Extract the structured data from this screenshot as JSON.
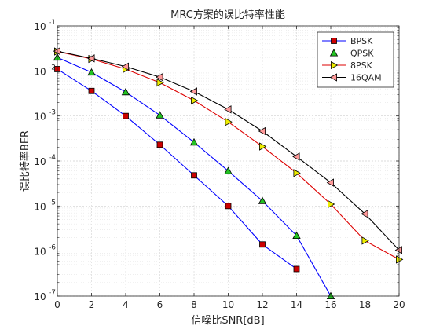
{
  "chart_data": {
    "type": "line",
    "title": "MRC方案的误比特率性能",
    "xlabel": "信噪比SNR[dB]",
    "ylabel": "误比特率BER",
    "x_ticks": [
      "0",
      "2",
      "4",
      "6",
      "8",
      "10",
      "12",
      "14",
      "16",
      "18",
      "20"
    ],
    "y_ticks": [
      {
        "value": 0.1,
        "mant": "10",
        "exp": "-1"
      },
      {
        "value": 0.01,
        "mant": "10",
        "exp": "-2"
      },
      {
        "value": 0.001,
        "mant": "10",
        "exp": "-3"
      },
      {
        "value": 0.0001,
        "mant": "10",
        "exp": "-4"
      },
      {
        "value": 1e-05,
        "mant": "10",
        "exp": "-5"
      },
      {
        "value": 1e-06,
        "mant": "10",
        "exp": "-6"
      },
      {
        "value": 1e-07,
        "mant": "10",
        "exp": "-7"
      }
    ],
    "xlim": [
      0,
      20
    ],
    "ylim": [
      1e-07,
      0.1
    ],
    "yscale": "log",
    "grid": true,
    "legend_position": "top-right",
    "series": [
      {
        "name": "BPSK",
        "color": "#0000ff",
        "marker": "square",
        "marker_color": "#cc0000",
        "x": [
          0,
          2,
          4,
          6,
          8,
          10,
          12,
          14
        ],
        "y": [
          0.011,
          0.0036,
          0.001,
          0.00023,
          4.8e-05,
          1e-05,
          1.4e-06,
          4e-07
        ]
      },
      {
        "name": "QPSK",
        "color": "#0000ff",
        "marker": "triangle-up",
        "marker_color": "#22c322",
        "x": [
          0,
          2,
          4,
          6,
          8,
          10,
          12,
          14,
          16
        ],
        "y": [
          0.02,
          0.0093,
          0.0034,
          0.00104,
          0.00026,
          6e-05,
          1.3e-05,
          2.2e-06,
          1e-07
        ]
      },
      {
        "name": "8PSK",
        "color": "#dd0000",
        "marker": "triangle-right",
        "marker_color": "#eeee00",
        "x": [
          0,
          2,
          4,
          6,
          8,
          10,
          12,
          14,
          16,
          18,
          20
        ],
        "y": [
          0.027,
          0.0185,
          0.011,
          0.0055,
          0.0022,
          0.00074,
          0.00021,
          5.4e-05,
          1.1e-05,
          1.7e-06,
          6.5e-07
        ]
      },
      {
        "name": "16QAM",
        "color": "#000000",
        "marker": "triangle-left",
        "marker_color": "#ff9999",
        "x": [
          0,
          2,
          4,
          6,
          8,
          10,
          12,
          14,
          16,
          18,
          20
        ],
        "y": [
          0.0275,
          0.019,
          0.0125,
          0.0073,
          0.0035,
          0.0014,
          0.00046,
          0.000125,
          3.3e-05,
          6.7e-06,
          1.05e-06
        ]
      }
    ]
  }
}
